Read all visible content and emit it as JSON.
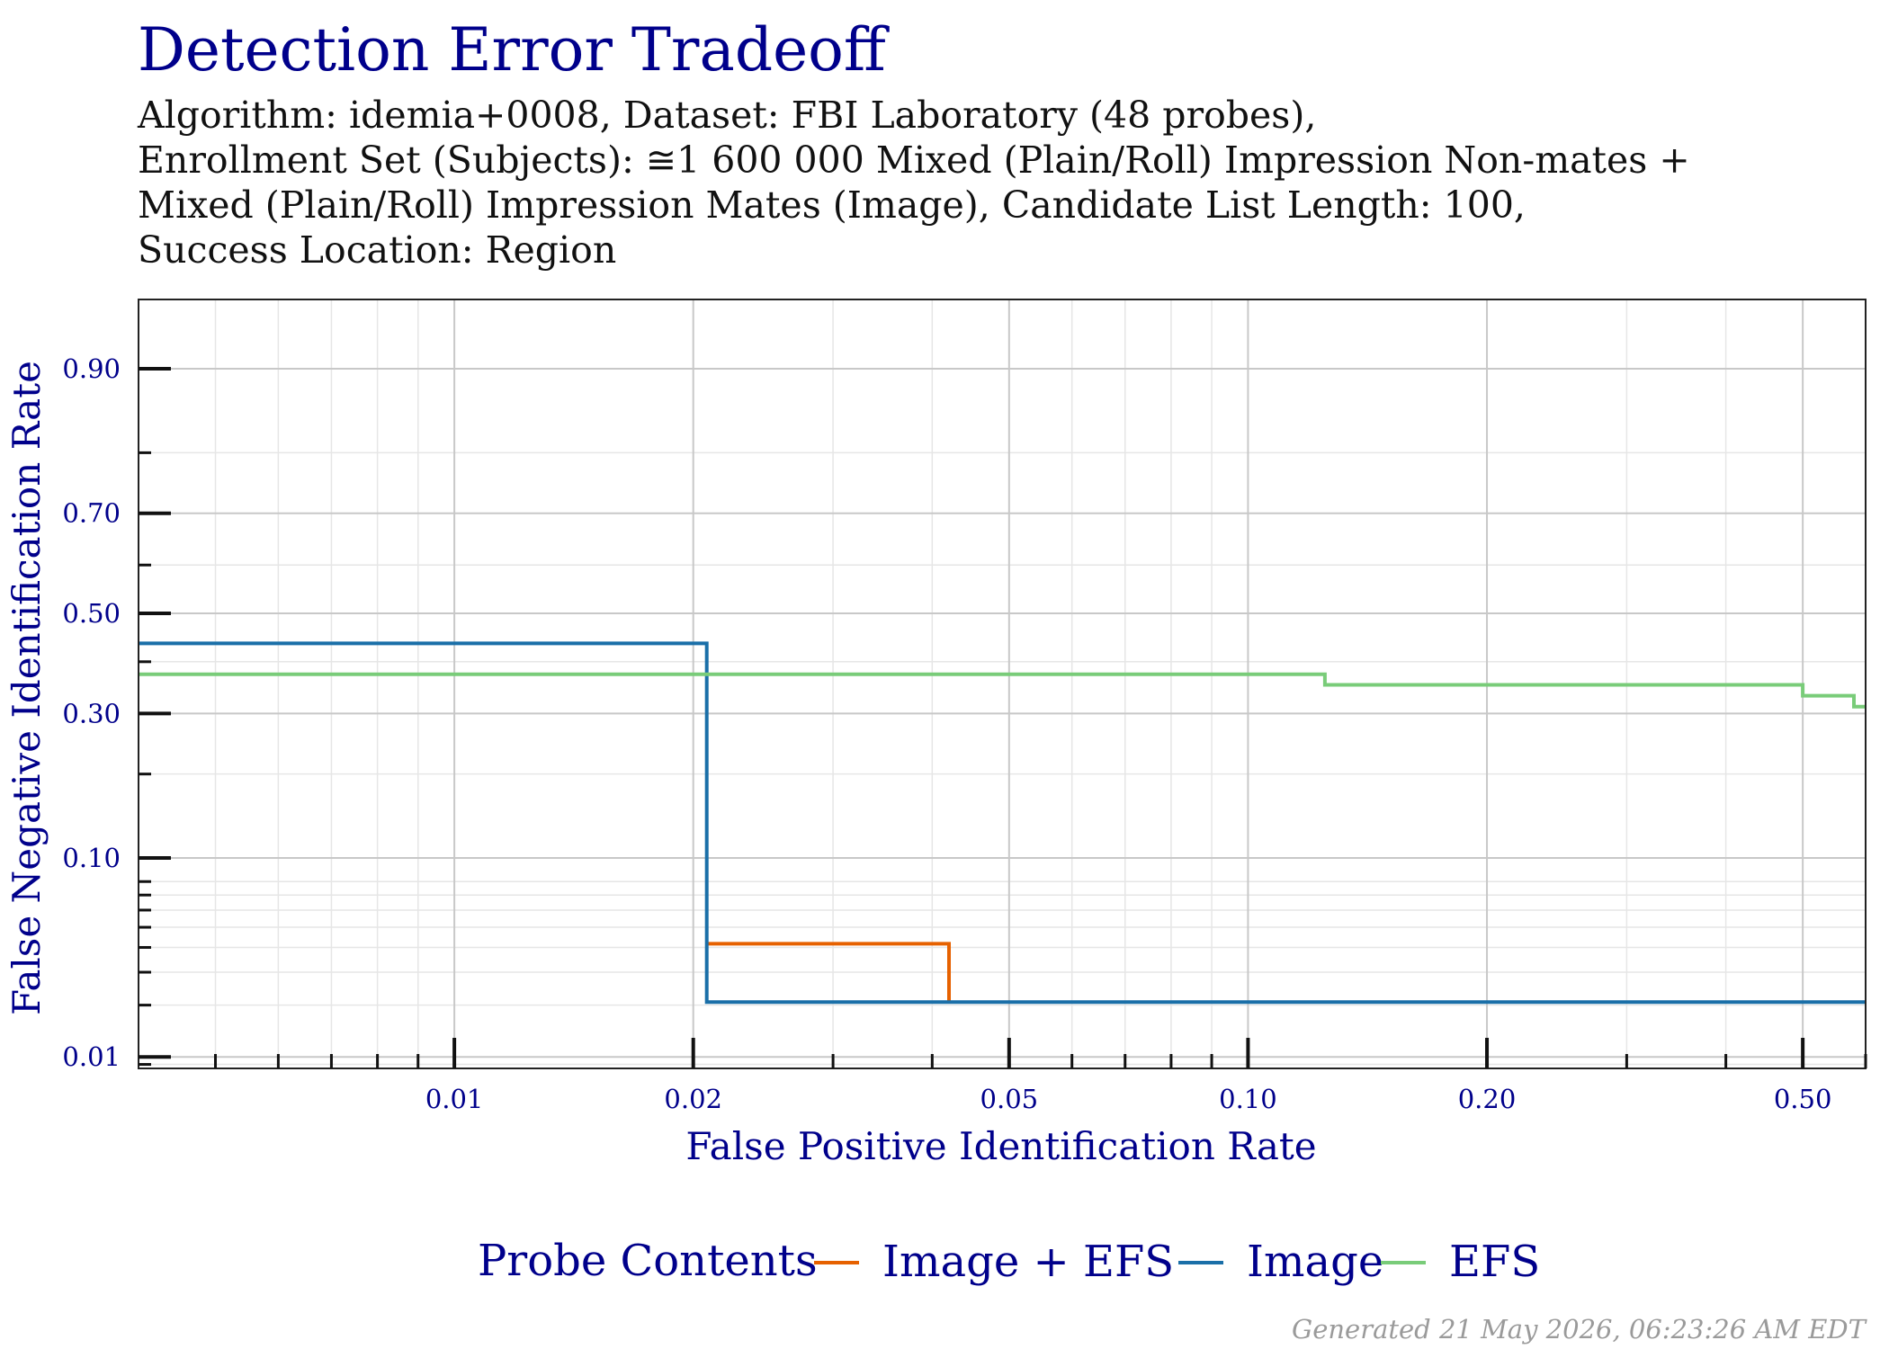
{
  "chart_data": {
    "type": "line",
    "step": true,
    "title": "Detection Error Tradeoff",
    "subtitle_lines": [
      "Algorithm: idemia+0008, Dataset: FBI Laboratory (48 probes),",
      "Enrollment Set (Subjects):  ≅1 600 000 Mixed (Plain/Roll) Impression Non-mates +",
      "Mixed (Plain/Roll) Impression Mates (Image), Candidate List Length: 100,",
      "Success Location: Region"
    ],
    "xlabel": "False Positive Identification Rate",
    "ylabel": "False Negative Identification Rate",
    "x_scale": "log",
    "y_scale": "probit",
    "xlim": [
      0.004,
      0.6
    ],
    "ylim": [
      0.0085,
      0.95
    ],
    "x_ticks": [
      0.01,
      0.02,
      0.05,
      0.1,
      0.2,
      0.5
    ],
    "x_tick_labels": [
      "0.01",
      "0.02",
      "0.05",
      "0.10",
      "0.20",
      "0.50"
    ],
    "y_ticks": [
      0.01,
      0.1,
      0.3,
      0.5,
      0.7,
      0.9
    ],
    "y_tick_labels": [
      "0.01",
      "0.10",
      "0.30",
      "0.50",
      "0.70",
      "0.90"
    ],
    "grid": true,
    "legend": {
      "title": "Probe Contents",
      "placement": "bottom"
    },
    "series": [
      {
        "name": "Image + EFS",
        "color": "#e66100",
        "x": [
          0.0208,
          0.042,
          0.042
        ],
        "y": [
          0.0417,
          0.0417,
          0.0208
        ]
      },
      {
        "name": "Image",
        "color": "#1a6fa8",
        "x": [
          0.004,
          0.0208,
          0.0208,
          0.6
        ],
        "y": [
          0.4375,
          0.4375,
          0.0208,
          0.0208
        ]
      },
      {
        "name": "EFS",
        "color": "#79cc79",
        "x": [
          0.004,
          0.125,
          0.125,
          0.5,
          0.5,
          0.58,
          0.58,
          0.6
        ],
        "y": [
          0.375,
          0.375,
          0.354,
          0.354,
          0.333,
          0.333,
          0.3125,
          0.3125
        ]
      }
    ]
  },
  "footer": "Generated 21 May 2026, 06:23:26 AM EDT"
}
